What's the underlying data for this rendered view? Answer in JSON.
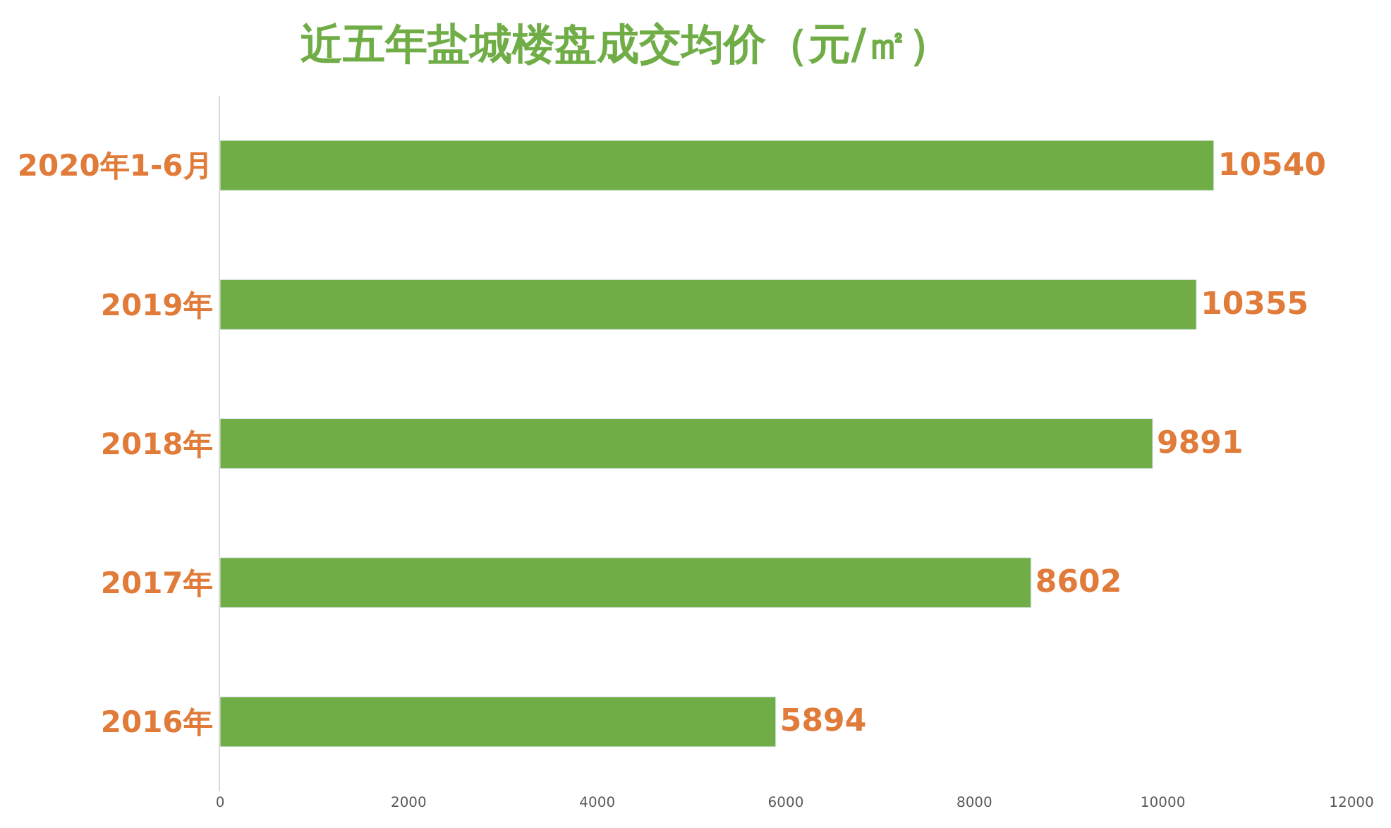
{
  "chart_data": {
    "type": "bar",
    "orientation": "horizontal",
    "title": "近五年盐城楼盘成交均价（元/㎡）",
    "categories": [
      "2020年1-6月",
      "2019年",
      "2018年",
      "2017年",
      "2016年"
    ],
    "values": [
      10540,
      10355,
      9891,
      8602,
      5894
    ],
    "color": "#70ad47",
    "xlim": [
      0,
      12000
    ],
    "xticks": [
      0,
      2000,
      4000,
      6000,
      8000,
      10000,
      12000
    ],
    "data_labels": true
  }
}
